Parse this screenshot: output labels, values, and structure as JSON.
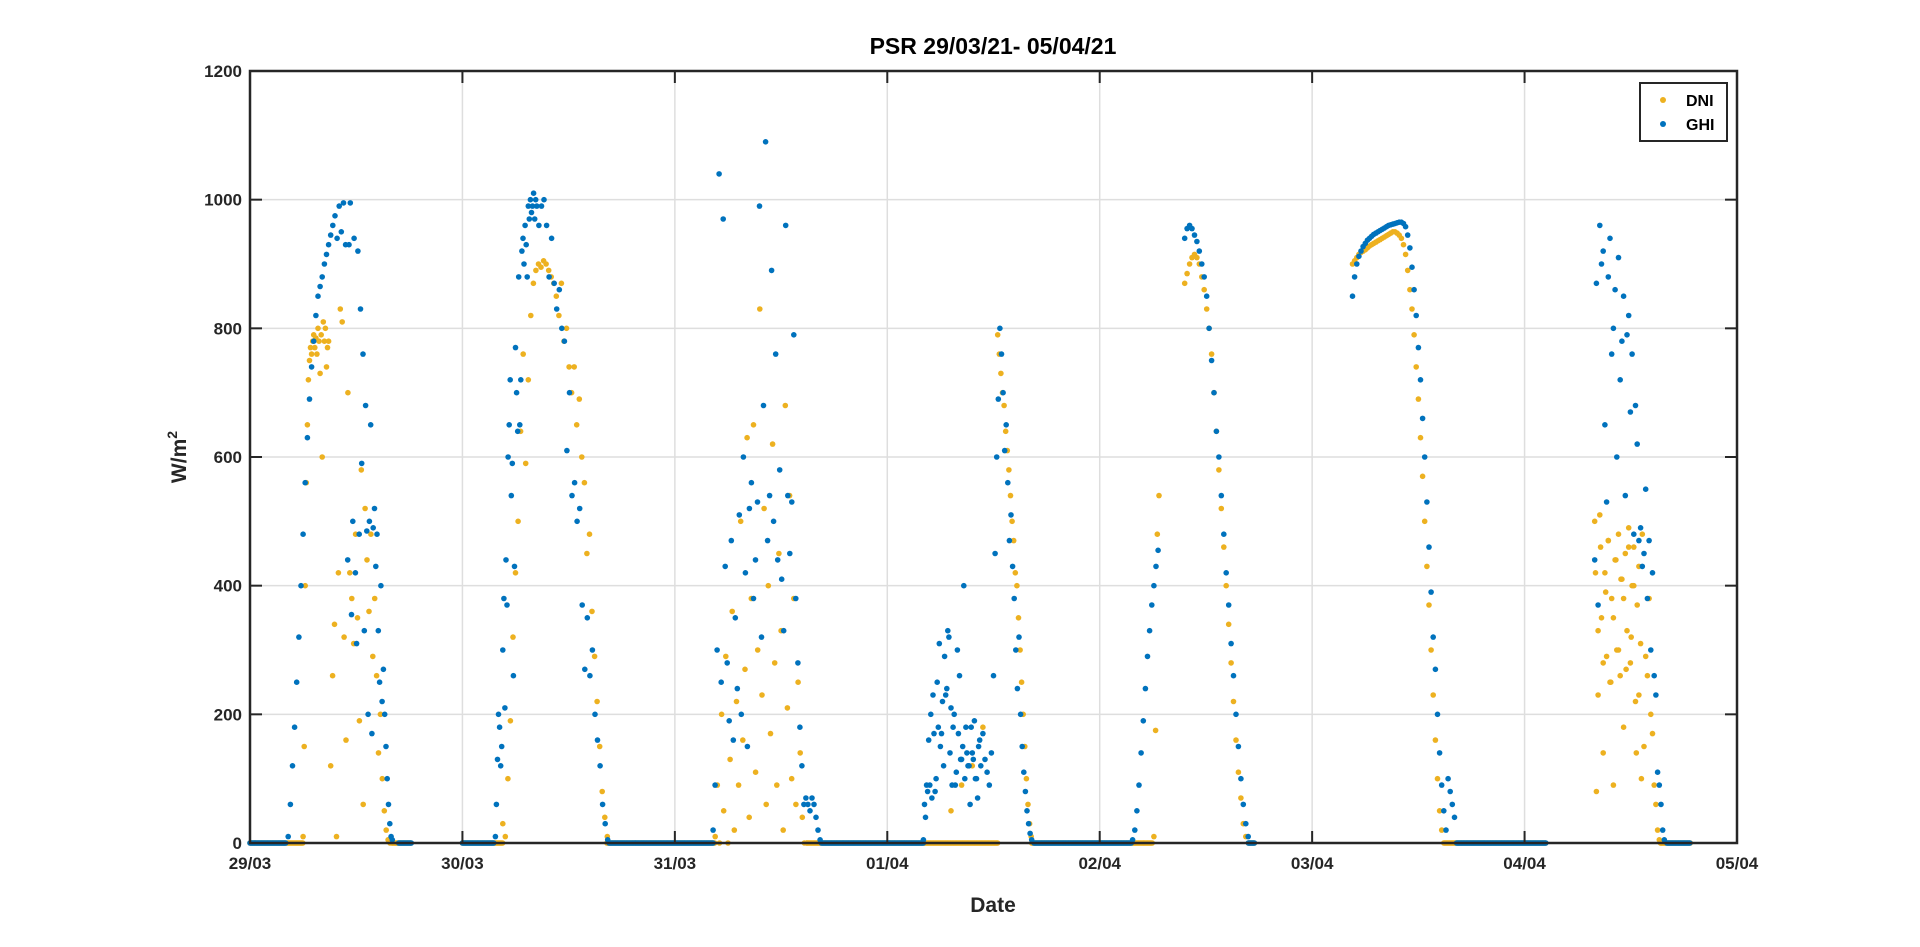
{
  "chart_data": {
    "type": "scatter",
    "title": "PSR 29/03/21- 05/04/21",
    "xlabel": "Date",
    "ylabel": "W/m",
    "ylabel_superscript": "2",
    "xlim": [
      0,
      7
    ],
    "ylim": [
      0,
      1200
    ],
    "x_unit": "days since 29/03/21 00:00",
    "xticks": [
      0,
      1,
      2,
      3,
      4,
      5,
      6,
      7
    ],
    "xtick_labels": [
      "29/03",
      "30/03",
      "31/03",
      "01/04",
      "02/04",
      "03/04",
      "04/04",
      "05/04"
    ],
    "yticks": [
      0,
      200,
      400,
      600,
      800,
      1000,
      1200
    ],
    "ytick_labels": [
      "0",
      "200",
      "400",
      "600",
      "800",
      "1000",
      "1200"
    ],
    "grid": true,
    "legend_position": "top-right",
    "series": [
      {
        "name": "DNI",
        "color": "#EDB120",
        "zero_ranges": [
          [
            0,
            0.25
          ],
          [
            0.67,
            0.76
          ],
          [
            1.0,
            1.19
          ],
          [
            1.68,
            2.19
          ],
          [
            2.62,
            3.52
          ],
          [
            3.68,
            4.25
          ],
          [
            4.7,
            4.73
          ],
          [
            5.62,
            6.1
          ],
          [
            6.64,
            6.78
          ]
        ],
        "segments": [
          {
            "t0": 0.25,
            "dt": 0.005,
            "v": [
              10,
              150,
              400,
              560,
              650,
              720,
              750,
              770,
              760,
              780,
              790,
              770,
              785,
              760,
              800,
              780,
              730,
              790,
              600,
              810,
              780,
              800,
              740,
              770,
              780
            ]
          },
          {
            "t0": 0.38,
            "dt": 0.009,
            "v": [
              120,
              260,
              340,
              10,
              420,
              830,
              810,
              320,
              160,
              700,
              420,
              380,
              310,
              480,
              350,
              190,
              580,
              60,
              520,
              440,
              360,
              480,
              290,
              380,
              260,
              140,
              200,
              100,
              50,
              20,
              5,
              0,
              0
            ]
          },
          {
            "t0": 1.19,
            "dt": 0.012,
            "v": [
              30,
              10,
              100,
              190,
              320,
              420,
              500,
              640,
              760,
              590,
              720,
              820,
              870,
              890,
              900,
              895,
              905,
              900,
              890,
              880,
              870,
              850,
              820,
              870,
              780,
              800,
              740,
              700,
              740,
              650,
              690,
              600,
              560,
              450,
              480,
              360,
              290,
              220,
              150,
              80,
              40,
              10
            ]
          },
          {
            "t0": 2.19,
            "dt": 0.01,
            "v": [
              10,
              90,
              0,
              200,
              50,
              290,
              0,
              130,
              360,
              20,
              220,
              90,
              500,
              160,
              270,
              630,
              40,
              380,
              650,
              110,
              300,
              830,
              230,
              520,
              60,
              400,
              170,
              620,
              280,
              90,
              450,
              330,
              20,
              680,
              210,
              540,
              100,
              380,
              60,
              250,
              140,
              40,
              0,
              0
            ]
          },
          {
            "t0": 3.3,
            "dt": 0.05,
            "v": [
              50,
              90,
              120,
              180
            ]
          },
          {
            "t0": 3.52,
            "dt": 0.0075,
            "v": [
              790,
              760,
              730,
              700,
              680,
              640,
              610,
              580,
              540,
              500,
              470,
              420,
              400,
              350,
              300,
              250,
              200,
              150,
              100,
              60,
              30,
              10
            ]
          },
          {
            "t0": 4.255,
            "dt": 0.008,
            "v": [
              10,
              175,
              480,
              540
            ]
          },
          {
            "t0": 4.4,
            "dt": 0.0115,
            "v": [
              870,
              885,
              900,
              910,
              915,
              910,
              900,
              880,
              860,
              830,
              800,
              760,
              700,
              640,
              580,
              520,
              460,
              400,
              340,
              280,
              220,
              160,
              110,
              70,
              30,
              10
            ]
          },
          {
            "t0": 5.19,
            "dt": 0.01,
            "v": [
              900,
              905,
              910,
              915,
              918,
              920,
              922,
              925,
              928,
              930,
              932,
              934,
              936,
              938,
              940,
              942,
              944,
              946,
              948,
              950,
              950,
              948,
              945,
              940,
              930,
              915,
              890,
              860,
              830,
              790,
              740,
              690,
              630,
              570,
              500,
              430,
              370,
              300,
              230,
              160,
              100,
              50,
              20
            ]
          },
          {
            "t0": 6.33,
            "dt": 0.008,
            "v": [
              500,
              80,
              230,
              510,
              350,
              140,
              420,
              290,
              470,
              250,
              380,
              90,
              440,
              300,
              480,
              260,
              410,
              180,
              450,
              330,
              490,
              280,
              400,
              460,
              220,
              370,
              430,
              310,
              480,
              150,
              290,
              260,
              380,
              200,
              170,
              90,
              60,
              20,
              5,
              0
            ]
          },
          {
            "t0": 6.334,
            "dt": 0.012,
            "v": [
              420,
              330,
              460,
              280,
              390,
              470,
              250,
              350,
              440,
              300,
              410,
              380,
              270,
              460,
              320,
              400,
              140,
              230,
              100
            ]
          }
        ]
      },
      {
        "name": "GHI",
        "color": "#0072BD",
        "zero_ranges": [
          [
            0,
            0.17
          ],
          [
            0.7,
            0.76
          ],
          [
            1.0,
            1.15
          ],
          [
            1.69,
            2.18
          ],
          [
            2.69,
            3.17
          ],
          [
            3.69,
            4.15
          ],
          [
            4.7,
            4.73
          ],
          [
            5.68,
            6.1
          ],
          [
            6.67,
            6.78
          ]
        ],
        "segments": [
          {
            "t0": 0.18,
            "dt": 0.01,
            "v": [
              10,
              60,
              120,
              180,
              250,
              320,
              400,
              480,
              560,
              630,
              690,
              740,
              780,
              820,
              850,
              865,
              880,
              900,
              915,
              930,
              945,
              960,
              975,
              940,
              990,
              950,
              995,
              930
            ]
          },
          {
            "t0": 0.46,
            "dt": 0.006,
            "v": [
              440,
              930,
              995,
              355,
              500,
              940,
              420,
              310,
              920,
              480,
              830,
              590,
              760,
              330,
              680,
              485,
              200,
              500,
              650,
              170,
              490,
              520,
              430,
              480,
              330,
              250,
              400,
              220,
              270,
              200,
              150,
              100,
              60,
              30,
              10,
              5
            ]
          },
          {
            "t0": 1.155,
            "dt": 0.005,
            "v": [
              10,
              60,
              130,
              200,
              180,
              120,
              150,
              300,
              380,
              210,
              440,
              370,
              600,
              650,
              720,
              540,
              590,
              260,
              430,
              770,
              700,
              640,
              880,
              650,
              720,
              920,
              940,
              900,
              960,
              930,
              880,
              990,
              970,
              1000,
              980,
              990,
              1010,
              970,
              1000,
              990
            ]
          },
          {
            "t0": 1.36,
            "dt": 0.012,
            "v": [
              960,
              990,
              1000,
              960,
              880,
              940,
              870,
              830,
              860,
              800,
              780,
              610,
              700,
              540,
              560,
              500,
              520,
              370,
              270,
              350,
              260,
              300,
              200,
              160,
              120,
              60,
              30,
              5
            ]
          },
          {
            "t0": 2.18,
            "dt": 0.0095,
            "v": [
              20,
              90,
              300,
              1040,
              250,
              970,
              430,
              280,
              190,
              470,
              160,
              350,
              240,
              510,
              200,
              600,
              420,
              150,
              520,
              560,
              380,
              440,
              530,
              990,
              320,
              680,
              1090,
              470,
              540,
              890,
              500,
              760,
              440,
              580,
              410,
              330,
              960,
              540,
              450,
              530,
              790,
              380,
              280,
              180,
              120,
              60,
              70,
              60,
              50,
              70,
              60,
              40,
              20,
              5
            ]
          },
          {
            "t0": 3.17,
            "dt": 0.01,
            "v": [
              5,
              40,
              80,
              90,
              70,
              170,
              100,
              180,
              150,
              220,
              290,
              240,
              320,
              210,
              180,
              90,
              300,
              260,
              130,
              400,
              180,
              120,
              60,
              140,
              190,
              100,
              150,
              120,
              170,
              130,
              110,
              90,
              140
            ]
          },
          {
            "t0": 3.175,
            "dt": 0.01,
            "v": [
              60,
              90,
              160,
              200,
              230,
              80,
              250,
              310,
              170,
              120,
              230,
              330,
              140,
              90,
              200,
              110,
              170,
              130,
              150,
              100,
              140,
              120,
              180,
              130,
              100,
              70,
              160
            ]
          },
          {
            "t0": 3.5,
            "dt": 0.0075,
            "v": [
              260,
              450,
              600,
              690,
              800,
              760,
              700,
              610,
              650,
              560,
              470,
              510,
              430,
              380,
              300,
              240,
              320,
              200,
              150,
              110,
              80,
              50,
              30,
              15,
              5
            ]
          },
          {
            "t0": 4.155,
            "dt": 0.01,
            "v": [
              5,
              20,
              50,
              90,
              140,
              190,
              240,
              290,
              330,
              370,
              400,
              430,
              455
            ]
          },
          {
            "t0": 4.4,
            "dt": 0.0115,
            "v": [
              940,
              955,
              960,
              955,
              945,
              935,
              920,
              900,
              880,
              850,
              800,
              750,
              700,
              640,
              600,
              540,
              480,
              420,
              370,
              310,
              260,
              200,
              150,
              100,
              60,
              30,
              10
            ]
          },
          {
            "t0": 5.19,
            "dt": 0.01,
            "v": [
              850,
              880,
              900,
              912,
              920,
              927,
              932,
              937,
              940,
              943,
              946,
              948,
              950,
              952,
              954,
              956,
              958,
              960,
              961,
              962,
              963,
              964,
              965,
              965,
              963,
              958,
              945,
              925,
              895,
              860,
              820,
              770,
              720,
              660,
              600,
              530,
              460,
              390,
              320,
              270,
              200,
              140,
              90,
              50,
              20,
              100,
              80,
              60,
              40
            ]
          },
          {
            "t0": 6.33,
            "dt": 0.008,
            "v": [
              440,
              870,
              370,
              960,
              900,
              920,
              650,
              530,
              880,
              940,
              760,
              800,
              860,
              600,
              910,
              720,
              780,
              850,
              540,
              790,
              820,
              670,
              760,
              480,
              680,
              620,
              470,
              490,
              430,
              450,
              550,
              380,
              470,
              300,
              420,
              260,
              230,
              110,
              90,
              60,
              20,
              5
            ]
          }
        ]
      }
    ]
  }
}
